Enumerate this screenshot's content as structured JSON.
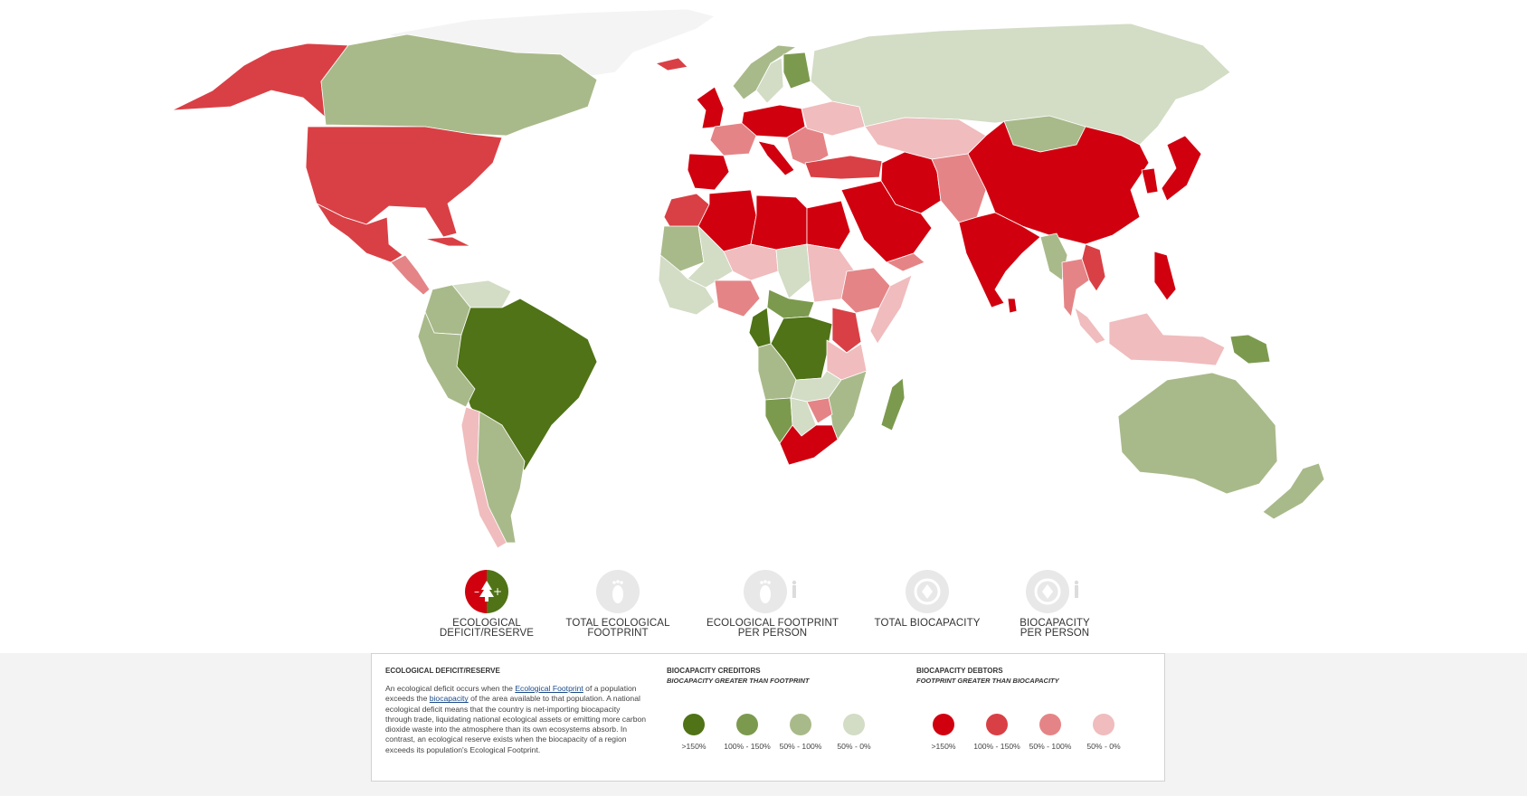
{
  "colors": {
    "creditor_gt150": "#4f7316",
    "creditor_100_150": "#7c9a4e",
    "creditor_50_100": "#a9ba8a",
    "creditor_50_0": "#d3dcc5",
    "debtor_gt150": "#d1000f",
    "debtor_100_150": "#d94045",
    "debtor_50_100": "#e58486",
    "debtor_50_0": "#f0bcbd",
    "no_data": "#f4f4f4"
  },
  "map": {
    "countries": [
      {
        "name": "Greenland",
        "cls": "no_data"
      },
      {
        "name": "Alaska",
        "cls": "debtor_100_150"
      },
      {
        "name": "Canada",
        "cls": "creditor_50_100"
      },
      {
        "name": "United States",
        "cls": "debtor_100_150"
      },
      {
        "name": "Mexico",
        "cls": "debtor_100_150"
      },
      {
        "name": "Central America",
        "cls": "debtor_50_100"
      },
      {
        "name": "Cuba",
        "cls": "debtor_100_150"
      },
      {
        "name": "Venezuela",
        "cls": "creditor_50_0"
      },
      {
        "name": "Colombia",
        "cls": "creditor_50_100"
      },
      {
        "name": "Brazil",
        "cls": "creditor_gt150"
      },
      {
        "name": "Peru",
        "cls": "creditor_50_100"
      },
      {
        "name": "Chile",
        "cls": "debtor_50_0"
      },
      {
        "name": "Argentina",
        "cls": "creditor_50_100"
      },
      {
        "name": "Iceland",
        "cls": "debtor_100_150"
      },
      {
        "name": "Norway",
        "cls": "creditor_50_100"
      },
      {
        "name": "Sweden",
        "cls": "creditor_50_0"
      },
      {
        "name": "Finland",
        "cls": "creditor_100_150"
      },
      {
        "name": "United Kingdom",
        "cls": "debtor_gt150"
      },
      {
        "name": "France",
        "cls": "debtor_50_100"
      },
      {
        "name": "Iberia",
        "cls": "debtor_gt150"
      },
      {
        "name": "Central Europe",
        "cls": "debtor_gt150"
      },
      {
        "name": "Italy",
        "cls": "debtor_gt150"
      },
      {
        "name": "Eastern Europe",
        "cls": "debtor_50_100"
      },
      {
        "name": "Ukraine",
        "cls": "debtor_50_0"
      },
      {
        "name": "Russia",
        "cls": "creditor_50_0"
      },
      {
        "name": "Turkey",
        "cls": "debtor_100_150"
      },
      {
        "name": "Kazakhstan",
        "cls": "debtor_50_0"
      },
      {
        "name": "Mongolia",
        "cls": "creditor_50_100"
      },
      {
        "name": "China",
        "cls": "debtor_gt150"
      },
      {
        "name": "Korea",
        "cls": "debtor_gt150"
      },
      {
        "name": "Japan",
        "cls": "debtor_gt150"
      },
      {
        "name": "Iran",
        "cls": "debtor_gt150"
      },
      {
        "name": "Central Asia",
        "cls": "debtor_50_100"
      },
      {
        "name": "Saudi Arabia",
        "cls": "debtor_gt150"
      },
      {
        "name": "Yemen",
        "cls": "debtor_50_100"
      },
      {
        "name": "India",
        "cls": "debtor_gt150"
      },
      {
        "name": "Sri Lanka",
        "cls": "debtor_gt150"
      },
      {
        "name": "Myanmar",
        "cls": "creditor_50_100"
      },
      {
        "name": "Thailand",
        "cls": "debtor_50_100"
      },
      {
        "name": "Vietnam",
        "cls": "debtor_100_150"
      },
      {
        "name": "Philippines",
        "cls": "debtor_gt150"
      },
      {
        "name": "Malaysia",
        "cls": "debtor_50_0"
      },
      {
        "name": "Indonesia",
        "cls": "debtor_50_0"
      },
      {
        "name": "Papua New Guinea",
        "cls": "creditor_100_150"
      },
      {
        "name": "Australia",
        "cls": "creditor_50_100"
      },
      {
        "name": "New Zealand",
        "cls": "creditor_50_100"
      },
      {
        "name": "Morocco",
        "cls": "debtor_100_150"
      },
      {
        "name": "Algeria",
        "cls": "debtor_gt150"
      },
      {
        "name": "Libya",
        "cls": "debtor_gt150"
      },
      {
        "name": "Egypt",
        "cls": "debtor_gt150"
      },
      {
        "name": "Mauritania",
        "cls": "creditor_50_100"
      },
      {
        "name": "Mali",
        "cls": "creditor_50_0"
      },
      {
        "name": "Niger",
        "cls": "debtor_50_0"
      },
      {
        "name": "Chad",
        "cls": "creditor_50_0"
      },
      {
        "name": "Sudan",
        "cls": "debtor_50_0"
      },
      {
        "name": "Ethiopia",
        "cls": "debtor_50_100"
      },
      {
        "name": "Somalia",
        "cls": "debtor_50_0"
      },
      {
        "name": "West Africa",
        "cls": "creditor_50_0"
      },
      {
        "name": "Nigeria",
        "cls": "debtor_50_100"
      },
      {
        "name": "Central African Republic",
        "cls": "creditor_100_150"
      },
      {
        "name": "DR Congo",
        "cls": "creditor_gt150"
      },
      {
        "name": "Gabon",
        "cls": "creditor_gt150"
      },
      {
        "name": "Kenya",
        "cls": "debtor_100_150"
      },
      {
        "name": "Tanzania",
        "cls": "debtor_50_0"
      },
      {
        "name": "Angola",
        "cls": "creditor_50_100"
      },
      {
        "name": "Zambia",
        "cls": "creditor_50_0"
      },
      {
        "name": "Mozambique",
        "cls": "creditor_50_100"
      },
      {
        "name": "Namibia",
        "cls": "creditor_100_150"
      },
      {
        "name": "Botswana",
        "cls": "creditor_50_0"
      },
      {
        "name": "Zimbabwe",
        "cls": "debtor_50_100"
      },
      {
        "name": "South Africa",
        "cls": "debtor_gt150"
      },
      {
        "name": "Madagascar",
        "cls": "creditor_100_150"
      }
    ]
  },
  "modes": [
    {
      "label": "ECOLOGICAL DEFICIT/RESERVE",
      "line1": "ECOLOGICAL",
      "line2": "DEFICIT/RESERVE",
      "active": true,
      "icon": "deficit-reserve-icon"
    },
    {
      "label": "TOTAL ECOLOGICAL FOOTPRINT",
      "line1": "TOTAL ECOLOGICAL",
      "line2": "FOOTPRINT",
      "active": false,
      "icon": "footprint-icon"
    },
    {
      "label": "ECOLOGICAL FOOTPRINT PER PERSON",
      "line1": "ECOLOGICAL FOOTPRINT",
      "line2": "PER PERSON",
      "active": false,
      "icon": "footprint-person-icon"
    },
    {
      "label": "TOTAL BIOCAPACITY",
      "line1": "TOTAL BIOCAPACITY",
      "line2": "",
      "active": false,
      "icon": "biocapacity-icon"
    },
    {
      "label": "BIOCAPACITY PER PERSON",
      "line1": "BIOCAPACITY",
      "line2": "PER PERSON",
      "active": false,
      "icon": "biocapacity-person-icon"
    }
  ],
  "legend": {
    "title": "ECOLOGICAL DEFICIT/RESERVE",
    "desc_part1": "An ecological deficit occurs when the ",
    "link1": "Ecological Footprint",
    "desc_part2": " of a population exceeds the ",
    "link2": "biocapacity",
    "desc_part3": " of the area available to that population. A national ecological deficit means that the country is net-importing biocapacity through trade, liquidating national ecological assets or emitting more carbon dioxide waste into the atmosphere than its own ecosystems absorb. In contrast, an ecological reserve exists when the biocapacity of a region exceeds its population's Ecological Footprint.",
    "creditors": {
      "title": "BIOCAPACITY CREDITORS",
      "subtitle": "BIOCAPACITY GREATER THAN FOOTPRINT",
      "items": [
        {
          "label": ">150%",
          "color": "#4f7316"
        },
        {
          "label": "100% - 150%",
          "color": "#7c9a4e"
        },
        {
          "label": "50% - 100%",
          "color": "#a9ba8a"
        },
        {
          "label": "50% - 0%",
          "color": "#d3dcc5"
        }
      ]
    },
    "debtors": {
      "title": "BIOCAPACITY DEBTORS",
      "subtitle": "FOOTPRINT GREATER THAN BIOCAPACITY",
      "items": [
        {
          "label": ">150%",
          "color": "#d1000f"
        },
        {
          "label": "100% - 150%",
          "color": "#d94045"
        },
        {
          "label": "50% - 100%",
          "color": "#e58486"
        },
        {
          "label": "50% - 0%",
          "color": "#f0bcbd"
        }
      ]
    }
  }
}
